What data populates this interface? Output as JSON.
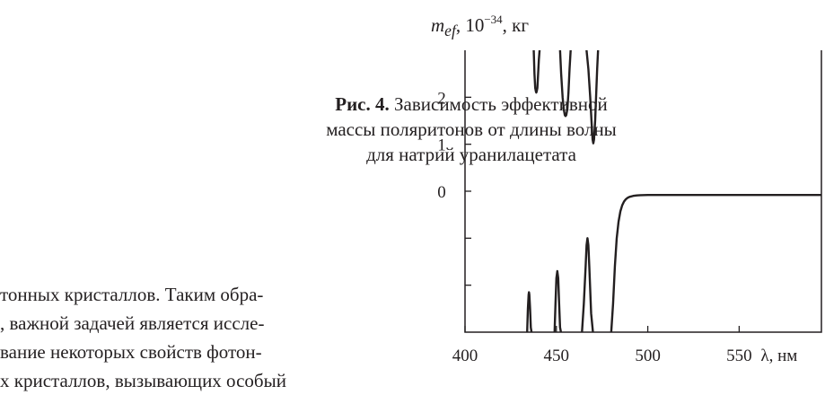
{
  "caption": {
    "label": "Рис. 4.",
    "text": "Зависимость эффективной массы поляритонов от длины волны для натрий уранилацетата"
  },
  "body_text": [
    "тонных кристаллов. Таким обра-",
    ", важной задачей является иссле-",
    "вание некоторых свойств фотон-",
    "х кристаллов, вызывающих особый"
  ],
  "chart_data": {
    "type": "line",
    "ylabel_base": "m",
    "ylabel_sub": "ef",
    "ylabel_mid": ", 10",
    "ylabel_exp": "−34",
    "ylabel_unit": ", кг",
    "xlabel": "λ, нм",
    "xlim": [
      400,
      595
    ],
    "ylim": [
      -3,
      3
    ],
    "xticks": [
      400,
      450,
      500,
      550
    ],
    "yticks": [
      0,
      1,
      2
    ],
    "yminor_ticks": [
      -1,
      -2
    ],
    "grid": false,
    "series": [
      {
        "x": [
          437.6,
          438.0,
          438.4,
          438.8,
          439.0,
          439.2,
          439.6,
          440.0,
          440.4,
          440.8
        ],
        "y": [
          3.0,
          2.5,
          2.2,
          2.12,
          2.1,
          2.12,
          2.2,
          2.5,
          2.8,
          3.0
        ]
      },
      {
        "x": [
          452.0,
          452.6,
          453.4,
          454.0,
          454.6,
          455.0,
          455.4,
          456.0,
          456.6,
          457.2,
          457.8
        ],
        "y": [
          3.0,
          2.5,
          2.0,
          1.75,
          1.62,
          1.6,
          1.62,
          1.75,
          2.1,
          2.6,
          3.0
        ]
      },
      {
        "x": [
          466.5,
          467.5,
          468.5,
          469.2,
          469.8,
          470.2,
          470.6,
          471.2,
          471.8,
          472.3,
          472.8
        ],
        "y": [
          3.0,
          2.6,
          2.0,
          1.5,
          1.1,
          1.02,
          1.1,
          1.5,
          2.1,
          2.6,
          3.0
        ]
      },
      {
        "x": [
          434.0,
          434.4,
          434.8,
          435.0,
          435.2,
          435.6,
          436.0,
          436.4
        ],
        "y": [
          -3.0,
          -2.5,
          -2.2,
          -2.15,
          -2.2,
          -2.5,
          -2.9,
          -3.0
        ]
      },
      {
        "x": [
          449.0,
          449.5,
          450.0,
          450.5,
          451.0,
          451.5,
          452.0,
          452.5
        ],
        "y": [
          -3.0,
          -2.4,
          -1.85,
          -1.7,
          -1.85,
          -2.4,
          -2.9,
          -3.0
        ]
      },
      {
        "x": [
          464.0,
          465.0,
          466.0,
          466.5,
          467.0,
          467.5,
          468.0,
          469.0,
          470.0
        ],
        "y": [
          -3.0,
          -2.4,
          -1.6,
          -1.15,
          -1.0,
          -1.15,
          -1.6,
          -2.6,
          -3.0
        ]
      },
      {
        "x": [
          480.0,
          481.0,
          482.0,
          483.0,
          484.0,
          485.0,
          486.0,
          487.0,
          488.0,
          489.0,
          490.0,
          492.0,
          494.0,
          496.0,
          500.0,
          510.0,
          530.0,
          560.0,
          595.0
        ],
        "y": [
          -3.0,
          -2.4,
          -1.6,
          -1.0,
          -0.65,
          -0.43,
          -0.3,
          -0.22,
          -0.17,
          -0.14,
          -0.12,
          -0.1,
          -0.09,
          -0.085,
          -0.08,
          -0.08,
          -0.08,
          -0.08,
          -0.08
        ]
      }
    ]
  }
}
